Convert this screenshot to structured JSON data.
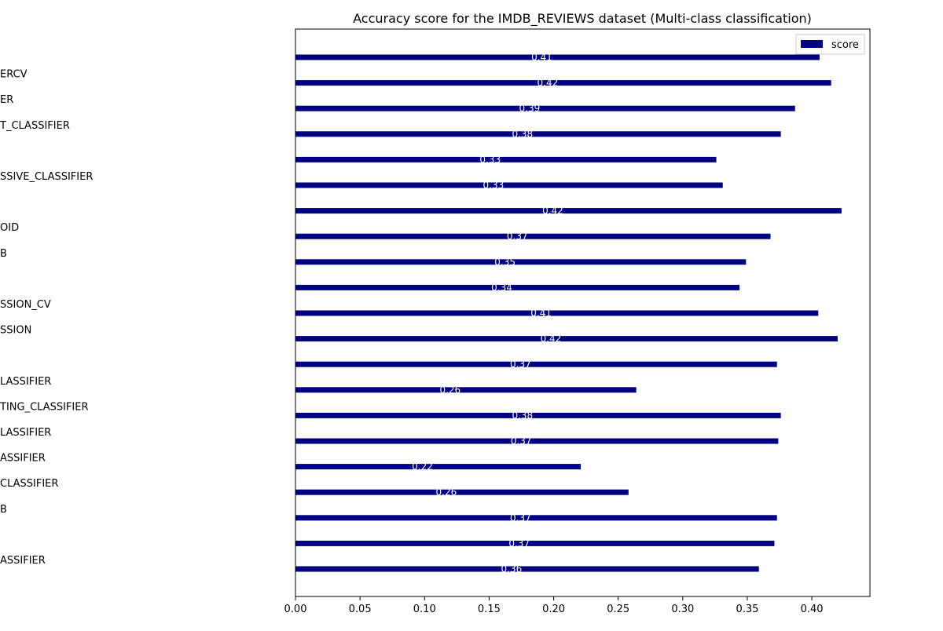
{
  "chart_data": {
    "type": "bar",
    "orientation": "horizontal",
    "title": "Accuracy score for the IMDB_REVIEWS dataset (Multi-class classification)",
    "xlabel": "",
    "ylabel": "",
    "xlim": [
      0,
      0.445
    ],
    "xticks": [
      "0.00",
      "0.05",
      "0.10",
      "0.15",
      "0.20",
      "0.25",
      "0.30",
      "0.35",
      "0.40"
    ],
    "xtick_values": [
      0,
      0.05,
      0.1,
      0.15,
      0.2,
      0.25,
      0.3,
      0.35,
      0.4
    ],
    "grid": false,
    "legend": {
      "position": "top-right",
      "entries": [
        "score"
      ]
    },
    "bar_color": "#000080",
    "bar_label_color": "#ffffff",
    "categories": [
      "",
      "ERCV",
      "ER",
      "T_CLASSIFIER",
      "",
      "SSIVE_CLASSIFIER",
      "",
      "OID",
      "B",
      "",
      "SSION_CV",
      "SSION",
      "",
      "LASSIFIER",
      "TING_CLASSIFIER",
      "LASSIFIER",
      "ASSIFIER",
      "CLASSIFIER",
      "B",
      "",
      "ASSIFIER"
    ],
    "series": [
      {
        "name": "score",
        "values": [
          0.406,
          0.415,
          0.387,
          0.376,
          0.326,
          0.331,
          0.423,
          0.368,
          0.349,
          0.344,
          0.405,
          0.42,
          0.373,
          0.264,
          0.376,
          0.374,
          0.221,
          0.258,
          0.373,
          0.371,
          0.359
        ],
        "labels": [
          "0.41",
          "0.42",
          "0.39",
          "0.38",
          "0.33",
          "0.33",
          "0.42",
          "0.37",
          "0.35",
          "0.34",
          "0.41",
          "0.42",
          "0.37",
          "0.26",
          "0.38",
          "0.37",
          "0.22",
          "0.26",
          "0.37",
          "0.37",
          "0.36"
        ]
      }
    ]
  }
}
